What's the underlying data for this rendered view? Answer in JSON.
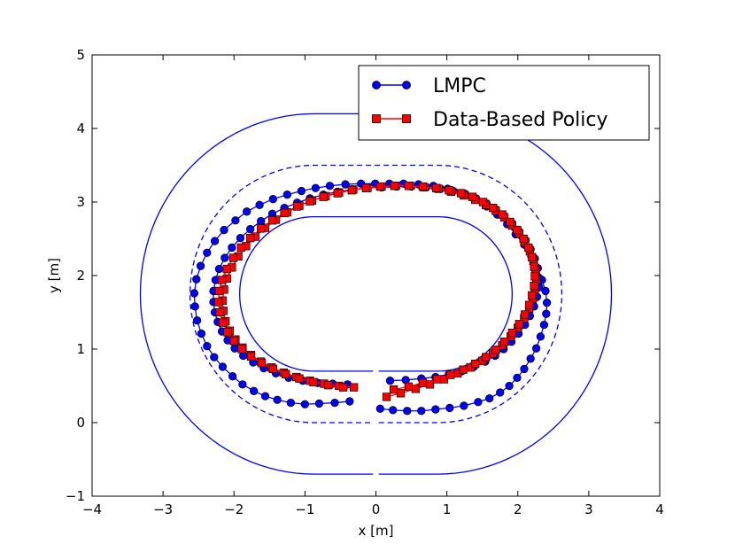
{
  "chart_data": {
    "type": "line",
    "title": "",
    "xlabel": "x [m]",
    "ylabel": "y [m]",
    "xlim": [
      -4,
      4
    ],
    "ylim": [
      -1,
      5
    ],
    "xticks": [
      -4,
      -3,
      -2,
      -1,
      0,
      1,
      2,
      3,
      4
    ],
    "yticks": [
      -1,
      0,
      1,
      2,
      3,
      4,
      5
    ],
    "xtick_labels": [
      "−4",
      "−3",
      "−2",
      "−1",
      "0",
      "1",
      "2",
      "3",
      "4"
    ],
    "ytick_labels": [
      "−1",
      "0",
      "1",
      "2",
      "3",
      "4",
      "5"
    ],
    "legend_position": "top-right",
    "track": {
      "center_radius": 1.05,
      "straight_half_length": 0.87,
      "center_y": 1.75,
      "inner_offset": -1.05,
      "outer_offset": 2.45,
      "center_line_offset": 0.7,
      "color": "#0000ff"
    },
    "series": [
      {
        "name": "LMPC",
        "color": "#0000ff",
        "marker": "circle",
        "laps": [
          {
            "x": [
              0.06,
              0.24,
              0.44,
              0.64,
              0.84,
              1.04,
              1.24,
              1.44,
              1.6,
              1.75,
              1.88,
              1.99,
              2.09,
              2.18,
              2.26,
              2.32,
              2.37,
              2.4,
              2.41,
              2.39,
              2.34,
              2.28,
              2.19,
              2.09,
              1.97,
              1.85,
              1.71,
              1.56,
              1.39,
              1.2,
              1.01,
              0.81,
              0.6,
              0.39,
              0.19,
              -0.01,
              -0.21,
              -0.43,
              -0.65,
              -0.85,
              -1.05,
              -1.25,
              -1.45,
              -1.64,
              -1.82,
              -1.98,
              -2.14,
              -2.27,
              -2.38,
              -2.47,
              -2.53,
              -2.56,
              -2.55,
              -2.52,
              -2.46,
              -2.38,
              -2.28,
              -2.16,
              -2.02,
              -1.88,
              -1.72,
              -1.56,
              -1.39,
              -1.2,
              -1.0,
              -0.8,
              -0.58,
              -0.37
            ],
            "y": [
              0.19,
              0.17,
              0.16,
              0.16,
              0.18,
              0.2,
              0.23,
              0.28,
              0.33,
              0.41,
              0.5,
              0.61,
              0.73,
              0.87,
              1.01,
              1.17,
              1.33,
              1.48,
              1.63,
              1.79,
              1.94,
              2.1,
              2.26,
              2.42,
              2.56,
              2.7,
              2.83,
              2.94,
              3.04,
              3.12,
              3.18,
              3.22,
              3.24,
              3.25,
              3.25,
              3.25,
              3.25,
              3.24,
              3.22,
              3.19,
              3.15,
              3.1,
              3.04,
              2.96,
              2.87,
              2.75,
              2.62,
              2.47,
              2.31,
              2.13,
              1.95,
              1.76,
              1.58,
              1.39,
              1.21,
              1.04,
              0.89,
              0.76,
              0.63,
              0.52,
              0.43,
              0.36,
              0.31,
              0.27,
              0.25,
              0.26,
              0.27,
              0.29
            ]
          },
          {
            "x": [
              0.2,
              0.42,
              0.64,
              0.84,
              1.03,
              1.21,
              1.38,
              1.54,
              1.68,
              1.8,
              1.91,
              2.01,
              2.1,
              2.17,
              2.23,
              2.27,
              2.3,
              2.3,
              2.28,
              2.24,
              2.18,
              2.11,
              2.02,
              1.92,
              1.81,
              1.69,
              1.56,
              1.41,
              1.26,
              1.09,
              0.91,
              0.71,
              0.5,
              0.29,
              0.08,
              -0.12,
              -0.33,
              -0.54,
              -0.74,
              -0.93,
              -1.11,
              -1.29,
              -1.46,
              -1.62,
              -1.77,
              -1.91,
              -2.03,
              -2.13,
              -2.21,
              -2.26,
              -2.29,
              -2.29,
              -2.27,
              -2.23,
              -2.17,
              -2.09,
              -1.99,
              -1.87,
              -1.73,
              -1.58,
              -1.41,
              -1.23,
              -1.03,
              -0.82,
              -0.61,
              -0.4
            ],
            "y": [
              0.57,
              0.58,
              0.6,
              0.62,
              0.66,
              0.7,
              0.76,
              0.83,
              0.91,
              1.0,
              1.1,
              1.21,
              1.33,
              1.45,
              1.58,
              1.71,
              1.84,
              1.97,
              2.1,
              2.23,
              2.36,
              2.48,
              2.6,
              2.71,
              2.81,
              2.9,
              2.98,
              3.05,
              3.11,
              3.15,
              3.18,
              3.2,
              3.21,
              3.21,
              3.2,
              3.19,
              3.17,
              3.14,
              3.1,
              3.05,
              2.99,
              2.92,
              2.84,
              2.74,
              2.63,
              2.51,
              2.38,
              2.24,
              2.09,
              1.94,
              1.79,
              1.64,
              1.5,
              1.37,
              1.24,
              1.12,
              1.01,
              0.91,
              0.82,
              0.74,
              0.67,
              0.61,
              0.57,
              0.54,
              0.53,
              0.52
            ]
          }
        ]
      },
      {
        "name": "Data-Based Policy",
        "color": "#ff0000",
        "marker": "square",
        "laps": [
          {
            "x": [
              0.15,
              0.35,
              0.56,
              0.76,
              0.96,
              1.15,
              1.33,
              1.5,
              1.65,
              1.78,
              1.9,
              2.0,
              2.09,
              2.16,
              2.21,
              2.24,
              2.26,
              2.25,
              2.22,
              2.17,
              2.1,
              2.02,
              1.92,
              1.81,
              1.69,
              1.55,
              1.4,
              1.24,
              1.06,
              0.88,
              0.68,
              0.48,
              0.28,
              0.08,
              -0.12,
              -0.32,
              -0.52,
              -0.71,
              -0.9,
              -1.08,
              -1.25,
              -1.41,
              -1.56,
              -1.7,
              -1.83,
              -1.94,
              -2.03,
              -2.1,
              -2.14,
              -2.16,
              -2.15,
              -2.12,
              -2.06,
              -1.98,
              -1.88,
              -1.76,
              -1.62,
              -1.47,
              -1.3,
              -1.12,
              -0.93,
              -0.73,
              -0.52,
              -0.31
            ],
            "y": [
              0.35,
              0.4,
              0.46,
              0.52,
              0.59,
              0.67,
              0.75,
              0.84,
              0.94,
              1.05,
              1.17,
              1.29,
              1.42,
              1.55,
              1.68,
              1.81,
              1.94,
              2.07,
              2.2,
              2.33,
              2.45,
              2.57,
              2.68,
              2.79,
              2.88,
              2.96,
              3.03,
              3.09,
              3.14,
              3.18,
              3.2,
              3.22,
              3.22,
              3.21,
              3.19,
              3.17,
              3.13,
              3.08,
              3.02,
              2.95,
              2.86,
              2.76,
              2.65,
              2.53,
              2.4,
              2.26,
              2.11,
              1.96,
              1.81,
              1.66,
              1.52,
              1.38,
              1.25,
              1.13,
              1.02,
              0.92,
              0.83,
              0.75,
              0.68,
              0.62,
              0.57,
              0.53,
              0.5,
              0.48
            ]
          },
          {
            "x": [
              0.25,
              0.46,
              0.66,
              0.86,
              1.05,
              1.23,
              1.4,
              1.55,
              1.69,
              1.81,
              1.92,
              2.02,
              2.1,
              2.16,
              2.2,
              2.23,
              2.24,
              2.23,
              2.2,
              2.15,
              2.08,
              1.99,
              1.89,
              1.78,
              1.65,
              1.51,
              1.36,
              1.2,
              1.03,
              0.85,
              0.66,
              0.46,
              0.26,
              0.06,
              -0.14,
              -0.34,
              -0.54,
              -0.74,
              -0.93,
              -1.11,
              -1.29,
              -1.46,
              -1.62,
              -1.77,
              -1.9,
              -2.01,
              -2.1,
              -2.17,
              -2.21,
              -2.22,
              -2.2,
              -2.16,
              -2.09,
              -2.0,
              -1.89,
              -1.76,
              -1.61,
              -1.45,
              -1.27,
              -1.08,
              -0.88,
              -0.67,
              -0.46
            ],
            "y": [
              0.45,
              0.49,
              0.54,
              0.59,
              0.65,
              0.72,
              0.8,
              0.89,
              0.99,
              1.1,
              1.22,
              1.34,
              1.47,
              1.6,
              1.73,
              1.86,
              1.99,
              2.12,
              2.25,
              2.38,
              2.5,
              2.62,
              2.73,
              2.83,
              2.92,
              3.0,
              3.07,
              3.12,
              3.16,
              3.19,
              3.21,
              3.22,
              3.22,
              3.21,
              3.19,
              3.16,
              3.12,
              3.07,
              3.01,
              2.94,
              2.85,
              2.75,
              2.64,
              2.51,
              2.38,
              2.24,
              2.09,
              1.94,
              1.79,
              1.64,
              1.5,
              1.36,
              1.23,
              1.11,
              1.0,
              0.9,
              0.81,
              0.73,
              0.66,
              0.6,
              0.55,
              0.51,
              0.48
            ]
          }
        ]
      }
    ]
  }
}
